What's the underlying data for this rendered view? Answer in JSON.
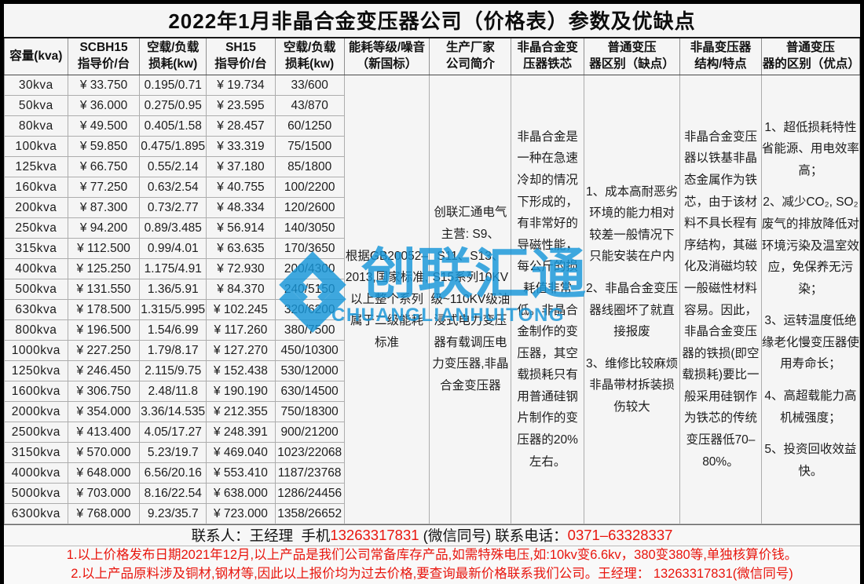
{
  "title": "2022年1月非晶合金变压器公司（价格表）参数及优缺点",
  "colors": {
    "accent_red": "#e8231d",
    "watermark_blue": "#1797da",
    "text": "#1c1c1c",
    "sheet_bg": "#f5f5f5"
  },
  "table": {
    "headers": [
      "容量(kva)",
      "SCBH15\n指导价/台",
      "空载/负载\n损耗(kw)",
      "SH15\n指导价/台",
      "空载/负载\n损耗(kw)",
      "能耗等级/噪音\n（新国标）",
      "生产厂家\n公司简介",
      "非晶合金变\n压器铁芯",
      "普通变压\n器区别（缺点）",
      "非晶变压器\n结构/特点",
      "普通变压\n器的区别（优点）"
    ],
    "rows": [
      {
        "capacity": "30kva",
        "scbh15_price": "¥ 33.750",
        "scbh15_loss": "0.195/0.71",
        "sh15_price": "¥ 19.734",
        "sh15_loss": "33/600"
      },
      {
        "capacity": "50kva",
        "scbh15_price": "¥ 36.000",
        "scbh15_loss": "0.275/0.95",
        "sh15_price": "¥ 23.595",
        "sh15_loss": "43/870"
      },
      {
        "capacity": "80kva",
        "scbh15_price": "¥ 49.500",
        "scbh15_loss": "0.405/1.58",
        "sh15_price": "¥ 28.457",
        "sh15_loss": "60/1250"
      },
      {
        "capacity": "100kva",
        "scbh15_price": "¥ 59.850",
        "scbh15_loss": "0.475/1.895",
        "sh15_price": "¥ 33.319",
        "sh15_loss": "75/1500"
      },
      {
        "capacity": "125kva",
        "scbh15_price": "¥ 66.750",
        "scbh15_loss": "0.55/2.14",
        "sh15_price": "¥ 37.180",
        "sh15_loss": "85/1800"
      },
      {
        "capacity": "160kva",
        "scbh15_price": "¥ 77.250",
        "scbh15_loss": "0.63/2.54",
        "sh15_price": "¥ 40.755",
        "sh15_loss": "100/2200"
      },
      {
        "capacity": "200kva",
        "scbh15_price": "¥ 87.300",
        "scbh15_loss": "0.73/2.77",
        "sh15_price": "¥ 48.334",
        "sh15_loss": "120/2600"
      },
      {
        "capacity": "250kva",
        "scbh15_price": "¥ 94.200",
        "scbh15_loss": "0.89/3.485",
        "sh15_price": "¥ 56.914",
        "sh15_loss": "140/3050"
      },
      {
        "capacity": "315kva",
        "scbh15_price": "¥ 112.500",
        "scbh15_loss": "0.99/4.01",
        "sh15_price": "¥ 63.635",
        "sh15_loss": "170/3650"
      },
      {
        "capacity": "400kva",
        "scbh15_price": "¥ 125.250",
        "scbh15_loss": "1.175/4.91",
        "sh15_price": "¥ 72.930",
        "sh15_loss": "200/4300"
      },
      {
        "capacity": "500kva",
        "scbh15_price": "¥ 131.550",
        "scbh15_loss": "1.36/5.91",
        "sh15_price": "¥ 84.370",
        "sh15_loss": "240/5150"
      },
      {
        "capacity": "630kva",
        "scbh15_price": "¥ 178.500",
        "scbh15_loss": "1.315/5.995",
        "sh15_price": "¥ 102.245",
        "sh15_loss": "320/6200"
      },
      {
        "capacity": "800kva",
        "scbh15_price": "¥ 196.500",
        "scbh15_loss": "1.54/6.99",
        "sh15_price": "¥ 117.260",
        "sh15_loss": "380/7500"
      },
      {
        "capacity": "1000kva",
        "scbh15_price": "¥ 227.250",
        "scbh15_loss": "1.79/8.17",
        "sh15_price": "¥ 127.270",
        "sh15_loss": "450/10300"
      },
      {
        "capacity": "1250kva",
        "scbh15_price": "¥ 246.450",
        "scbh15_loss": "2.115/9.75",
        "sh15_price": "¥ 152.438",
        "sh15_loss": "530/12000"
      },
      {
        "capacity": "1600kva",
        "scbh15_price": "¥ 306.750",
        "scbh15_loss": "2.48/11.8",
        "sh15_price": "¥ 190.190",
        "sh15_loss": "630/14500"
      },
      {
        "capacity": "2000kva",
        "scbh15_price": "¥ 354.000",
        "scbh15_loss": "3.36/14.535",
        "sh15_price": "¥ 212.355",
        "sh15_loss": "750/18300"
      },
      {
        "capacity": "2500kva",
        "scbh15_price": "¥ 413.400",
        "scbh15_loss": "4.05/17.27",
        "sh15_price": "¥ 248.391",
        "sh15_loss": "900/21200"
      },
      {
        "capacity": "3150kva",
        "scbh15_price": "¥ 570.000",
        "scbh15_loss": "5.23/19.7",
        "sh15_price": "¥ 469.040",
        "sh15_loss": "1023/22068"
      },
      {
        "capacity": "4000kva",
        "scbh15_price": "¥ 648.000",
        "scbh15_loss": "6.56/20.16",
        "sh15_price": "¥ 553.410",
        "sh15_loss": "1187/23768"
      },
      {
        "capacity": "5000kva",
        "scbh15_price": "¥ 703.000",
        "scbh15_loss": "8.16/22.54",
        "sh15_price": "¥ 638.000",
        "sh15_loss": "1286/24456"
      },
      {
        "capacity": "6300kva",
        "scbh15_price": "¥ 768.000",
        "scbh15_loss": "9.23/35.7",
        "sh15_price": "¥ 723.000",
        "sh15_loss": "1358/26652"
      }
    ],
    "merged": {
      "energy_standard": "根据GB20052–2013,国家标准,以上整个系列属于二级能耗标准",
      "manufacturer": "创联汇通电气主营: S9、S11、S13、S15系列10KV级~110KV级油浸式电力变压器有载调压电力变压器,非晶合金变压器",
      "core": "非晶合金是一种在急速冷却的情况下形成的，有非常好的导磁性能，每公斤的损耗值非常低。非晶合金制作的变压器，其空载损耗只有用普通硅钢片制作的变压器的20%左右。",
      "disadvantages": [
        "1、成本高耐恶劣环境的能力相对较差一般情况下只能安装在户内",
        "2、非晶合金变压器线圈坏了就直接报废",
        "3、维修比较麻烦非晶带材拆装损伤较大"
      ],
      "structure": "非晶合金变压器以铁基非晶态金属作为铁芯，由于该材料不具长程有序结构，其磁化及消磁均较一般磁性材料容易。因此，非晶合金变压器的铁损(即空载损耗)要比一般采用硅钢作为铁芯的传统变压器低70–80%。",
      "advantages": [
        "1、超低损耗特性省能源、用电效率高；",
        "2、减少CO₂, SO₂废气的排放降低对环境污染及温室效应，免保养无污染；",
        "3、运转温度低绝缘老化慢变压器使用寿命长；",
        "4、高超载能力高机械强度；",
        "5、投资回收效益快。"
      ]
    }
  },
  "contact": {
    "label1": "联系人：王经理  手机",
    "phone": "13263317831",
    "label2": " (微信同号) 联系电话：",
    "tel": "0371–63328337"
  },
  "notes": [
    "1.以上价格发布日期2021年12月,以上产品是我们公司常备库存产品,如需特殊电压,如:10kv变6.6kv，380变380等,单独核算价钱。",
    "2.以上产品原料涉及铜材,钢材等,因此以上报价均为过去价格,要查询最新价格联系我们公司。王经理： 13263317831(微信同号)"
  ],
  "watermark": {
    "cn": "创联汇通",
    "en": "CHUANGLIANHUITONG"
  }
}
